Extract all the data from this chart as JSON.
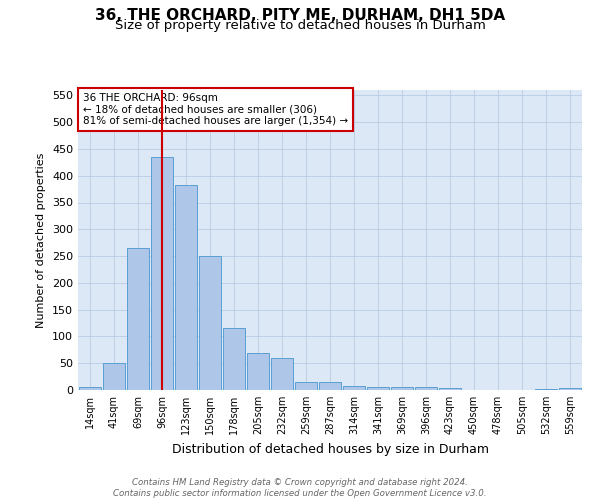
{
  "title": "36, THE ORCHARD, PITY ME, DURHAM, DH1 5DA",
  "subtitle": "Size of property relative to detached houses in Durham",
  "xlabel": "Distribution of detached houses by size in Durham",
  "ylabel": "Number of detached properties",
  "bar_labels": [
    "14sqm",
    "41sqm",
    "69sqm",
    "96sqm",
    "123sqm",
    "150sqm",
    "178sqm",
    "205sqm",
    "232sqm",
    "259sqm",
    "287sqm",
    "314sqm",
    "341sqm",
    "369sqm",
    "396sqm",
    "423sqm",
    "450sqm",
    "478sqm",
    "505sqm",
    "532sqm",
    "559sqm"
  ],
  "bar_values": [
    5,
    50,
    265,
    435,
    383,
    250,
    115,
    70,
    60,
    15,
    15,
    8,
    6,
    6,
    6,
    3,
    0,
    0,
    0,
    2,
    3
  ],
  "bar_color": "#aec6e8",
  "bar_edge_color": "#5a9fd4",
  "marker_index": 3,
  "marker_color": "#cc0000",
  "annotation_text": "36 THE ORCHARD: 96sqm\n← 18% of detached houses are smaller (306)\n81% of semi-detached houses are larger (1,354) →",
  "annotation_box_color": "#ffffff",
  "annotation_box_edge_color": "#cc0000",
  "ylim": [
    0,
    560
  ],
  "yticks": [
    0,
    50,
    100,
    150,
    200,
    250,
    300,
    350,
    400,
    450,
    500,
    550
  ],
  "bg_color": "#dce8f5",
  "footer_text": "Contains HM Land Registry data © Crown copyright and database right 2024.\nContains public sector information licensed under the Open Government Licence v3.0.",
  "title_fontsize": 11,
  "subtitle_fontsize": 9.5
}
